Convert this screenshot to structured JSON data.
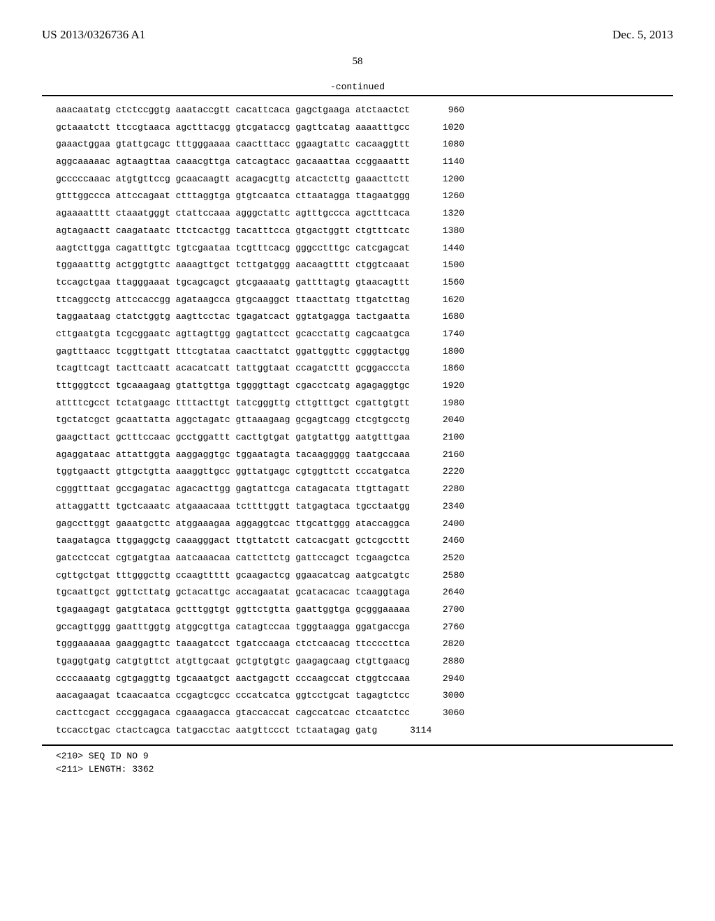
{
  "header": {
    "publication_number": "US 2013/0326736 A1",
    "publication_date": "Dec. 5, 2013",
    "page_number": "58",
    "continued_label": "-continued"
  },
  "sequence_rows": [
    {
      "seq": "aaacaatatg ctctccggtg aaataccgtt cacattcaca gagctgaaga atctaactct",
      "pos": "960"
    },
    {
      "seq": "gctaaatctt ttccgtaaca agctttacgg gtcgataccg gagttcatag aaaatttgcc",
      "pos": "1020"
    },
    {
      "seq": "gaaactggaa gtattgcagc tttgggaaaa caactttacc ggaagtattc cacaaggttt",
      "pos": "1080"
    },
    {
      "seq": "aggcaaaaac agtaagttaa caaacgttga catcagtacc gacaaattaa ccggaaattt",
      "pos": "1140"
    },
    {
      "seq": "gcccccaaac atgtgttccg gcaacaagtt acagacgttg atcactcttg gaaacttctt",
      "pos": "1200"
    },
    {
      "seq": "gtttggccca attccagaat ctttaggtga gtgtcaatca cttaatagga ttagaatggg",
      "pos": "1260"
    },
    {
      "seq": "agaaaatttt ctaaatgggt ctattccaaa agggctattc agtttgccca agctttcaca",
      "pos": "1320"
    },
    {
      "seq": "agtagaactt caagataatc ttctcactgg tacatttcca gtgactggtt ctgtttcatc",
      "pos": "1380"
    },
    {
      "seq": "aagtcttgga cagatttgtc tgtcgaataa tcgtttcacg gggcctttgc catcgagcat",
      "pos": "1440"
    },
    {
      "seq": "tggaaatttg actggtgttc aaaagttgct tcttgatggg aacaagtttt ctggtcaaat",
      "pos": "1500"
    },
    {
      "seq": "tccagctgaa ttagggaaat tgcagcagct gtcgaaaatg gattttagtg gtaacagttt",
      "pos": "1560"
    },
    {
      "seq": "ttcaggcctg attccaccgg agataagcca gtgcaaggct ttaacttatg ttgatcttag",
      "pos": "1620"
    },
    {
      "seq": "taggaataag ctatctggtg aagttcctac tgagatcact ggtatgagga tactgaatta",
      "pos": "1680"
    },
    {
      "seq": "cttgaatgta tcgcggaatc agttagttgg gagtattcct gcacctattg cagcaatgca",
      "pos": "1740"
    },
    {
      "seq": "gagtttaacc tcggttgatt tttcgtataa caacttatct ggattggttc cgggtactgg",
      "pos": "1800"
    },
    {
      "seq": "tcagttcagt tacttcaatt acacatcatt tattggtaat ccagatcttt gcggacccta",
      "pos": "1860"
    },
    {
      "seq": "tttgggtcct tgcaaagaag gtattgttga tggggttagt cgacctcatg agagaggtgc",
      "pos": "1920"
    },
    {
      "seq": "attttcgcct tctatgaagc ttttacttgt tatcgggttg cttgtttgct cgattgtgtt",
      "pos": "1980"
    },
    {
      "seq": "tgctatcgct gcaattatta aggctagatc gttaaagaag gcgagtcagg ctcgtgcctg",
      "pos": "2040"
    },
    {
      "seq": "gaagcttact gctttccaac gcctggattt cacttgtgat gatgtattgg aatgtttgaa",
      "pos": "2100"
    },
    {
      "seq": "agaggataac attattggta aaggaggtgc tggaatagta tacaaggggg taatgccaaa",
      "pos": "2160"
    },
    {
      "seq": "tggtgaactt gttgctgtta aaaggttgcc ggttatgagc cgtggttctt cccatgatca",
      "pos": "2220"
    },
    {
      "seq": "cgggtttaat gccgagatac agacacttgg gagtattcga catagacata ttgttagatt",
      "pos": "2280"
    },
    {
      "seq": "attaggattt tgctcaaatc atgaaacaaa tcttttggtt tatgagtaca tgcctaatgg",
      "pos": "2340"
    },
    {
      "seq": "gagccttggt gaaatgcttc atggaaagaa aggaggtcac ttgcattggg ataccaggca",
      "pos": "2400"
    },
    {
      "seq": "taagatagca ttggaggctg caaagggact ttgttatctt catcacgatt gctcgccttt",
      "pos": "2460"
    },
    {
      "seq": "gatcctccat cgtgatgtaa aatcaaacaa cattcttctg gattccagct tcgaagctca",
      "pos": "2520"
    },
    {
      "seq": "cgttgctgat tttgggcttg ccaagttttt gcaagactcg ggaacatcag aatgcatgtc",
      "pos": "2580"
    },
    {
      "seq": "tgcaattgct ggttcttatg gctacattgc accagaatat gcatacacac tcaaggtaga",
      "pos": "2640"
    },
    {
      "seq": "tgagaagagt gatgtataca gctttggtgt ggttctgtta gaattggtga gcgggaaaaa",
      "pos": "2700"
    },
    {
      "seq": "gccagttggg gaatttggtg atggcgttga catagtccaa tgggtaagga ggatgaccga",
      "pos": "2760"
    },
    {
      "seq": "tgggaaaaaa gaaggagttc taaagatcct tgatccaaga ctctcaacag ttccccttca",
      "pos": "2820"
    },
    {
      "seq": "tgaggtgatg catgtgttct atgttgcaat gctgtgtgtc gaagagcaag ctgttgaacg",
      "pos": "2880"
    },
    {
      "seq": "ccccaaaatg cgtgaggttg tgcaaatgct aactgagctt cccaagccat ctggtccaaa",
      "pos": "2940"
    },
    {
      "seq": "aacagaagat tcaacaatca ccgagtcgcc cccatcatca ggtcctgcat tagagtctcc",
      "pos": "3000"
    },
    {
      "seq": "cacttcgact cccggagaca cgaaagacca gtaccaccat cagccatcac ctcaatctcc",
      "pos": "3060"
    },
    {
      "seq": "tccacctgac ctactcagca tatgacctac aatgttccct tctaatagag gatg",
      "pos": "3114"
    }
  ],
  "seq_meta": {
    "line1": "<210> SEQ ID NO 9",
    "line2": "<211> LENGTH: 3362"
  }
}
